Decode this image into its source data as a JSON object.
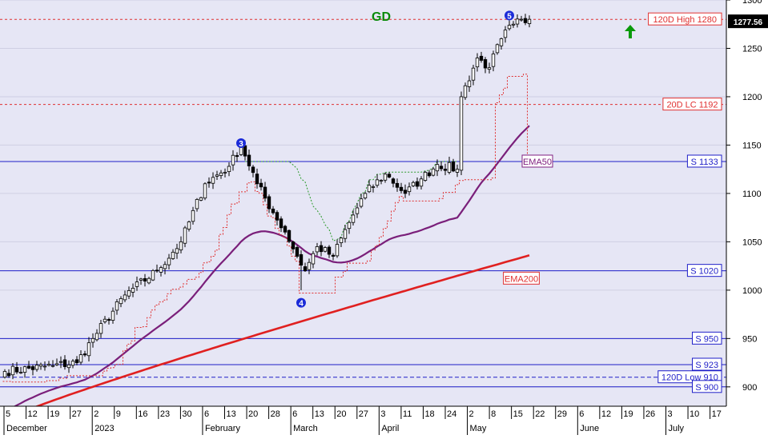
{
  "chart_data": {
    "type": "candlestick",
    "title": "GD",
    "title_color": "#0a8a0a",
    "background": "#e6e6f5",
    "ylim": [
      880,
      1300
    ],
    "y_ticks": [
      900,
      950,
      1000,
      1050,
      1100,
      1150,
      1200,
      1250,
      1300
    ],
    "last_price": "1277.56",
    "x_axis": {
      "day_ticks": [
        "5",
        "12",
        "19",
        "27",
        "2",
        "9",
        "16",
        "23",
        "30",
        "6",
        "13",
        "20",
        "28",
        "6",
        "13",
        "20",
        "27",
        "3",
        "11",
        "18",
        "24",
        "2",
        "8",
        "15",
        "22",
        "29",
        "6",
        "12",
        "19",
        "26",
        "3",
        "10",
        "17"
      ],
      "month_labels": [
        {
          "label": "December",
          "tick": 0
        },
        {
          "label": "2023",
          "tick": 4
        },
        {
          "label": "February",
          "tick": 9
        },
        {
          "label": "March",
          "tick": 13
        },
        {
          "label": "April",
          "tick": 17
        },
        {
          "label": "May",
          "tick": 21
        },
        {
          "label": "June",
          "tick": 26
        },
        {
          "label": "July",
          "tick": 30
        }
      ]
    },
    "levels": [
      {
        "label": "120D High 1280",
        "value": 1280,
        "style": "dotted",
        "color": "#e03030"
      },
      {
        "label": "20D LC 1192",
        "value": 1192,
        "style": "dotted",
        "color": "#e03030"
      },
      {
        "label": "S 1133",
        "value": 1133,
        "style": "solid",
        "color": "#1e1ec8"
      },
      {
        "label": "S 1020",
        "value": 1020,
        "style": "solid",
        "color": "#1e1ec8"
      },
      {
        "label": "S 950",
        "value": 950,
        "style": "solid",
        "color": "#1e1ec8"
      },
      {
        "label": "S 923",
        "value": 923,
        "style": "solid",
        "color": "#1e1ec8"
      },
      {
        "label": "120D Low 910",
        "value": 910,
        "style": "dashed",
        "color": "#1e1ec8"
      },
      {
        "label": "S 900",
        "value": 900,
        "style": "solid",
        "color": "#1e1ec8"
      }
    ],
    "ema_labels": [
      {
        "label": "EMA50",
        "idx": 133,
        "value": 1133,
        "color": "#802080"
      },
      {
        "label": "EMA200",
        "idx": 129,
        "value": 1012,
        "color": "#e03030"
      }
    ],
    "wave_labels": [
      {
        "label": "3",
        "idx": 59,
        "value": 1152
      },
      {
        "label": "4",
        "idx": 74,
        "value": 987
      },
      {
        "label": "5",
        "idx": 126,
        "value": 1284
      }
    ],
    "start_date": "2022-12-05",
    "first_close": 916,
    "anchors": [
      [
        0,
        916
      ],
      [
        12,
        922
      ],
      [
        18,
        925
      ],
      [
        22,
        950
      ],
      [
        30,
        995
      ],
      [
        38,
        1020
      ],
      [
        44,
        1050
      ],
      [
        50,
        1110
      ],
      [
        56,
        1128
      ],
      [
        59,
        1150
      ],
      [
        63,
        1110
      ],
      [
        67,
        1080
      ],
      [
        70,
        1060
      ],
      [
        73,
        1035
      ],
      [
        75,
        1020
      ],
      [
        78,
        1045
      ],
      [
        82,
        1035
      ],
      [
        86,
        1070
      ],
      [
        90,
        1100
      ],
      [
        95,
        1120
      ],
      [
        100,
        1100
      ],
      [
        104,
        1115
      ],
      [
        108,
        1130
      ],
      [
        113,
        1125
      ],
      [
        114,
        1200
      ],
      [
        118,
        1240
      ],
      [
        121,
        1230
      ],
      [
        124,
        1260
      ],
      [
        127,
        1275
      ],
      [
        131,
        1280
      ]
    ],
    "ema50_end": 1170,
    "ema200_end": 1036,
    "stop_end": 1135
  }
}
